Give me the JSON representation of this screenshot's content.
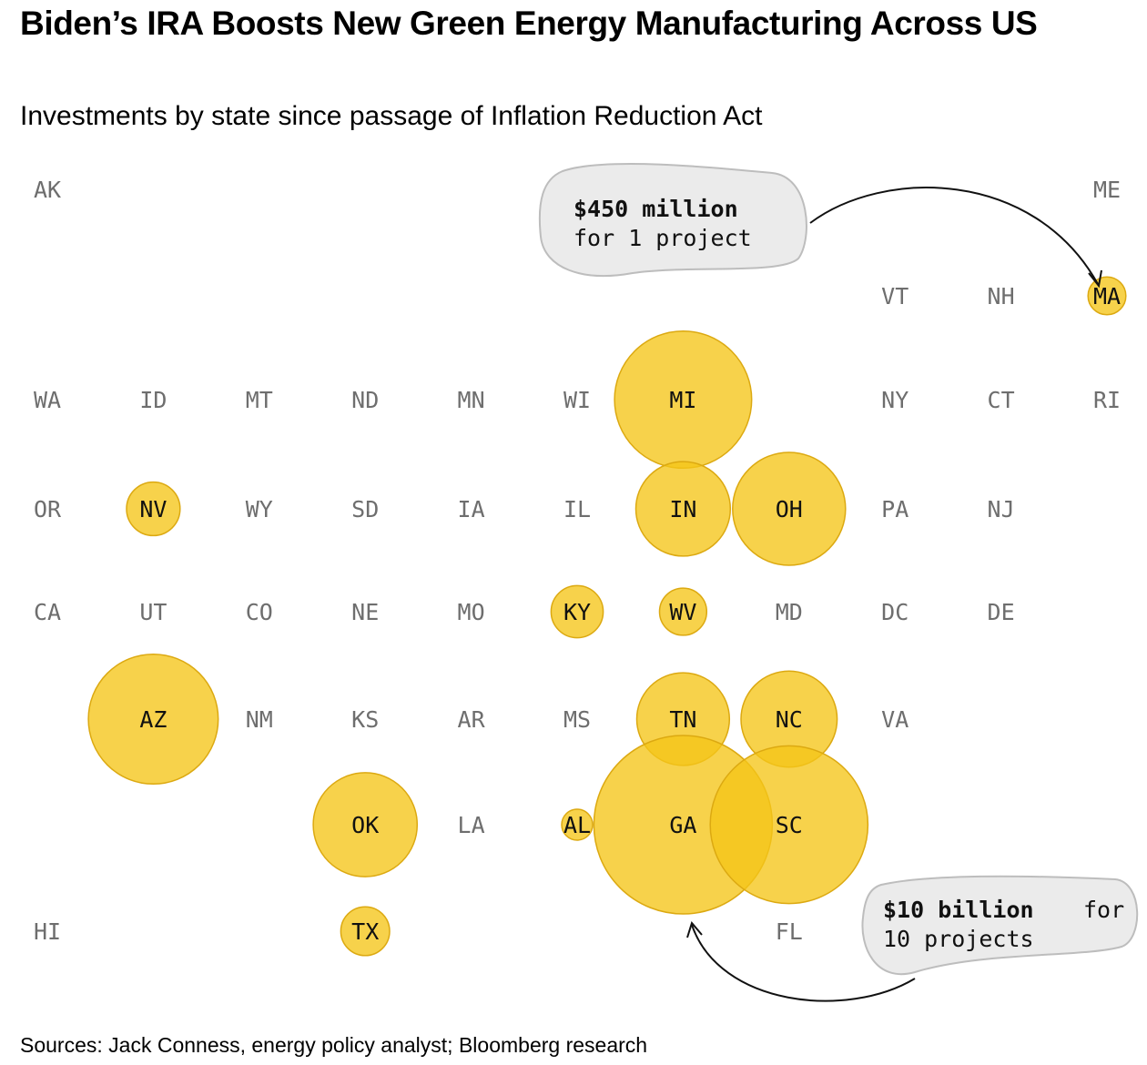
{
  "title": "Biden’s IRA Boosts New Green Energy Manufacturing Across US",
  "subtitle": "Investments by state since passage of Inflation Reduction Act",
  "source": "Sources: Jack Conness, energy policy analyst; Bloomberg research",
  "colors": {
    "bubble_fill": "#f5c518",
    "bubble_stroke": "#dca911",
    "label_active": "#111111",
    "label_inactive": "#6e6e6e",
    "callout_fill": "#ebebeb",
    "callout_stroke": "#bdbdbd"
  },
  "chart_data": {
    "type": "tile-grid map with proportional bubbles",
    "states": [
      {
        "code": "AK",
        "col": 0,
        "row": 0
      },
      {
        "code": "ME",
        "col": 10,
        "row": 0
      },
      {
        "code": "VT",
        "col": 8,
        "row": 1
      },
      {
        "code": "NH",
        "col": 9,
        "row": 1
      },
      {
        "code": "MA",
        "col": 10,
        "row": 1
      },
      {
        "code": "WA",
        "col": 0,
        "row": 2
      },
      {
        "code": "ID",
        "col": 1,
        "row": 2
      },
      {
        "code": "MT",
        "col": 2,
        "row": 2
      },
      {
        "code": "ND",
        "col": 3,
        "row": 2
      },
      {
        "code": "MN",
        "col": 4,
        "row": 2
      },
      {
        "code": "WI",
        "col": 5,
        "row": 2
      },
      {
        "code": "MI",
        "col": 6,
        "row": 2
      },
      {
        "code": "NY",
        "col": 8,
        "row": 2
      },
      {
        "code": "CT",
        "col": 9,
        "row": 2
      },
      {
        "code": "RI",
        "col": 10,
        "row": 2
      },
      {
        "code": "OR",
        "col": 0,
        "row": 3
      },
      {
        "code": "NV",
        "col": 1,
        "row": 3
      },
      {
        "code": "WY",
        "col": 2,
        "row": 3
      },
      {
        "code": "SD",
        "col": 3,
        "row": 3
      },
      {
        "code": "IA",
        "col": 4,
        "row": 3
      },
      {
        "code": "IL",
        "col": 5,
        "row": 3
      },
      {
        "code": "IN",
        "col": 6,
        "row": 3
      },
      {
        "code": "OH",
        "col": 7,
        "row": 3
      },
      {
        "code": "PA",
        "col": 8,
        "row": 3
      },
      {
        "code": "NJ",
        "col": 9,
        "row": 3
      },
      {
        "code": "CA",
        "col": 0,
        "row": 4
      },
      {
        "code": "UT",
        "col": 1,
        "row": 4
      },
      {
        "code": "CO",
        "col": 2,
        "row": 4
      },
      {
        "code": "NE",
        "col": 3,
        "row": 4
      },
      {
        "code": "MO",
        "col": 4,
        "row": 4
      },
      {
        "code": "KY",
        "col": 5,
        "row": 4
      },
      {
        "code": "WV",
        "col": 6,
        "row": 4
      },
      {
        "code": "MD",
        "col": 7,
        "row": 4
      },
      {
        "code": "DC",
        "col": 8,
        "row": 4
      },
      {
        "code": "DE",
        "col": 9,
        "row": 4
      },
      {
        "code": "AZ",
        "col": 1,
        "row": 5
      },
      {
        "code": "NM",
        "col": 2,
        "row": 5
      },
      {
        "code": "KS",
        "col": 3,
        "row": 5
      },
      {
        "code": "AR",
        "col": 4,
        "row": 5
      },
      {
        "code": "MS",
        "col": 5,
        "row": 5
      },
      {
        "code": "TN",
        "col": 6,
        "row": 5
      },
      {
        "code": "NC",
        "col": 7,
        "row": 5
      },
      {
        "code": "VA",
        "col": 8,
        "row": 5
      },
      {
        "code": "OK",
        "col": 3,
        "row": 6
      },
      {
        "code": "LA",
        "col": 4,
        "row": 6
      },
      {
        "code": "AL",
        "col": 5,
        "row": 6
      },
      {
        "code": "GA",
        "col": 6,
        "row": 6
      },
      {
        "code": "SC",
        "col": 7,
        "row": 6
      },
      {
        "code": "HI",
        "col": 0,
        "row": 7
      },
      {
        "code": "TX",
        "col": 3,
        "row": 7
      },
      {
        "code": "FL",
        "col": 7,
        "row": 7
      }
    ],
    "investments_usd_billions": {
      "MA": 0.45,
      "MI": 5.9,
      "NV": 0.9,
      "IN": 2.8,
      "OH": 4.0,
      "KY": 0.85,
      "WV": 0.7,
      "AZ": 5.3,
      "TN": 2.7,
      "NC": 2.9,
      "OK": 3.4,
      "AL": 0.3,
      "GA": 10.0,
      "SC": 7.8,
      "TX": 0.75
    },
    "annotations": [
      {
        "state": "MA",
        "bold": "$450 million",
        "text": "for 1 project"
      },
      {
        "state": "GA",
        "bold": "$10 billion",
        "text": "for 10 projects"
      }
    ]
  }
}
